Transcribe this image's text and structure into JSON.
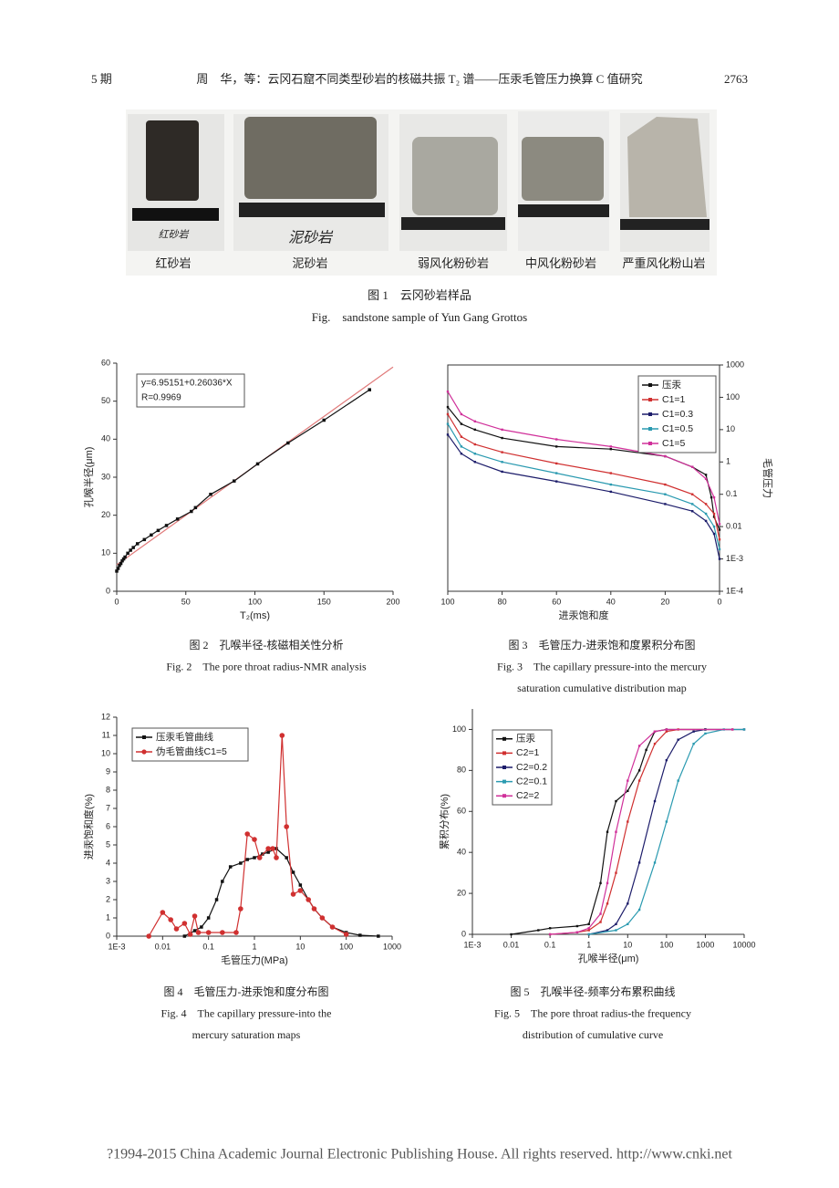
{
  "header": {
    "issue": "5 期",
    "title": "周　华，等：云冈石窟不同类型砂岩的核磁共振 T₂ 谱——压汞毛管压力换算 C 值研究",
    "page": "2763"
  },
  "figure1": {
    "sample_names": [
      "红砂岩",
      "泥砂岩",
      "弱风化粉砂岩",
      "中风化粉砂岩",
      "严重风化粉山岩"
    ],
    "photo_labels": [
      "红砂岩",
      "泥砂岩"
    ],
    "caption": [
      "图 1　云冈砂岩样品",
      "Fig.　sandstone sample of Yun Gang Grottos"
    ]
  },
  "chart_data": [
    {
      "type": "line",
      "xlabel": "T₂(ms)",
      "ylabel": "孔喉半径(μm)",
      "xlim": [
        0,
        200
      ],
      "xticks": [
        0,
        50,
        100,
        150,
        200
      ],
      "ylim": [
        0,
        60
      ],
      "yticks": [
        0,
        10,
        20,
        30,
        40,
        50,
        60
      ],
      "annotations": [
        "y=6.95151+0.26036*X",
        "R=0.9969"
      ],
      "series": [
        {
          "color": "#e07a7a",
          "marker": "none",
          "x": [
            0,
            200
          ],
          "values": [
            6.95,
            59
          ]
        },
        {
          "color": "#111111",
          "marker": "square",
          "x": [
            0,
            1,
            2,
            3,
            4,
            5,
            6,
            8,
            10,
            12,
            15,
            20,
            25,
            30,
            36,
            44,
            54,
            57,
            68,
            85,
            102,
            124,
            150,
            183
          ],
          "values": [
            5.3,
            6,
            6.8,
            7.3,
            8,
            8.5,
            9,
            10,
            10.8,
            11.5,
            12.5,
            13.6,
            14.8,
            16,
            17.3,
            19,
            21,
            22,
            25.5,
            29,
            33.5,
            39,
            45,
            53
          ]
        }
      ],
      "caption": [
        "图 2　孔喉半径-核磁相关性分析",
        "Fig. 2　The pore throat radius-NMR analysis"
      ]
    },
    {
      "type": "line",
      "xlabel": "进汞饱和度",
      "ylabel": "毛管压力",
      "yaxis": "right",
      "yscale": "log",
      "frame": true,
      "legend": "upper right",
      "xlim": [
        100,
        0
      ],
      "xticks": [
        100,
        80,
        60,
        40,
        20,
        0
      ],
      "ylim": [
        0.0001,
        1000
      ],
      "yticks": [
        {
          "value": 0.0001,
          "label": "1E-4"
        },
        {
          "value": 0.001,
          "label": "1E-3"
        },
        0.01,
        0.1,
        1,
        10,
        100,
        1000
      ],
      "series": [
        {
          "name": "压汞",
          "color": "#111111",
          "marker": "square",
          "x": [
            100,
            95,
            90,
            80,
            60,
            40,
            20,
            10,
            5,
            3,
            2,
            0
          ],
          "values": [
            50,
            15,
            10,
            5.5,
            3,
            2.5,
            1.5,
            0.7,
            0.4,
            0.08,
            0.02,
            0.008
          ]
        },
        {
          "name": "C1=1",
          "color": "#d03030",
          "marker": "square",
          "x": [
            100,
            95,
            90,
            80,
            60,
            40,
            20,
            10,
            5,
            2,
            0
          ],
          "values": [
            30,
            6,
            3.5,
            2,
            0.9,
            0.45,
            0.2,
            0.1,
            0.05,
            0.025,
            0.004
          ]
        },
        {
          "name": "C1=0.3",
          "color": "#1c1c6a",
          "marker": "square",
          "x": [
            100,
            95,
            90,
            80,
            60,
            40,
            20,
            10,
            5,
            2,
            0
          ],
          "values": [
            7,
            1.8,
            1,
            0.5,
            0.25,
            0.12,
            0.05,
            0.03,
            0.015,
            0.006,
            0.001
          ]
        },
        {
          "name": "C1=0.5",
          "color": "#2a9ab0",
          "marker": "square",
          "x": [
            100,
            95,
            90,
            80,
            60,
            40,
            20,
            10,
            5,
            2,
            0
          ],
          "values": [
            15,
            3,
            1.8,
            1,
            0.45,
            0.2,
            0.1,
            0.05,
            0.025,
            0.01,
            0.002
          ]
        },
        {
          "name": "C1=5",
          "color": "#d0309a",
          "marker": "square",
          "x": [
            100,
            95,
            90,
            80,
            60,
            40,
            20,
            10,
            5,
            2,
            0
          ],
          "values": [
            150,
            30,
            18,
            10,
            5,
            3,
            1.5,
            0.7,
            0.3,
            0.08,
            0.012
          ]
        }
      ],
      "caption": [
        "图 3　毛管压力-进汞饱和度累积分布图",
        "Fig. 3　The capillary pressure-into the mercury",
        "saturation cumulative distribution map"
      ]
    },
    {
      "type": "line",
      "xlabel": "毛管压力(MPa)",
      "ylabel": "进汞饱和度(%)",
      "xscale": "log",
      "legend": "upper left",
      "xlim": [
        0.001,
        1000
      ],
      "xticks": [
        {
          "value": 0.001,
          "label": "1E-3"
        },
        0.01,
        0.1,
        1,
        10,
        100,
        1000
      ],
      "ylim": [
        0,
        12
      ],
      "yticks": [
        0,
        1,
        2,
        3,
        4,
        5,
        6,
        7,
        8,
        9,
        10,
        11,
        12
      ],
      "series": [
        {
          "name": "压汞毛管曲线",
          "color": "#111111",
          "marker": "square",
          "x": [
            0.03,
            0.05,
            0.07,
            0.1,
            0.15,
            0.2,
            0.3,
            0.5,
            0.7,
            1,
            1.5,
            2,
            3,
            5,
            7,
            10,
            15,
            20,
            30,
            50,
            100,
            200,
            500
          ],
          "values": [
            0,
            0.3,
            0.5,
            1,
            2,
            3,
            3.8,
            4,
            4.2,
            4.3,
            4.5,
            4.6,
            4.8,
            4.3,
            3.5,
            2.8,
            2,
            1.5,
            1,
            0.5,
            0.2,
            0.05,
            0
          ]
        },
        {
          "name": "伪毛管曲线C1=5",
          "color": "#d03030",
          "marker": "circle",
          "x": [
            0.005,
            0.01,
            0.015,
            0.02,
            0.03,
            0.04,
            0.05,
            0.06,
            0.1,
            0.2,
            0.4,
            0.5,
            0.7,
            1,
            1.3,
            2,
            2.5,
            3,
            4,
            5,
            7,
            10,
            15,
            20,
            30,
            50,
            100
          ],
          "values": [
            0,
            1.3,
            0.9,
            0.4,
            0.7,
            0.1,
            1.1,
            0.2,
            0.2,
            0.2,
            0.2,
            1.5,
            5.6,
            5.3,
            4.3,
            4.8,
            4.8,
            4.3,
            11,
            6,
            2.3,
            2.5,
            2,
            1.5,
            1,
            0.5,
            0.1
          ]
        }
      ],
      "caption": [
        "图 4　毛管压力-进汞饱和度分布图",
        "Fig. 4　The capillary pressure-into the",
        "mercury saturation maps"
      ]
    },
    {
      "type": "line",
      "xlabel": "孔喉半径(μm)",
      "ylabel": "累积分布(%)",
      "xscale": "log",
      "legend": "upper left",
      "xlim": [
        0.001,
        10000
      ],
      "xticks": [
        {
          "value": 0.001,
          "label": "1E-3"
        },
        0.01,
        0.1,
        1,
        10,
        100,
        1000,
        10000
      ],
      "ylim": [
        0,
        110
      ],
      "yticks": [
        0,
        20,
        40,
        60,
        80,
        100
      ],
      "series": [
        {
          "name": "压汞",
          "color": "#111111",
          "marker": "square",
          "x": [
            0.01,
            0.05,
            0.1,
            0.5,
            1,
            2,
            3,
            5,
            10,
            20,
            30,
            50,
            100,
            1000
          ],
          "values": [
            0,
            2,
            3,
            4,
            5,
            25,
            50,
            65,
            70,
            80,
            90,
            99,
            100,
            100
          ]
        },
        {
          "name": "C2=1",
          "color": "#d03030",
          "marker": "square",
          "x": [
            0.1,
            0.5,
            1,
            2,
            3,
            5,
            10,
            20,
            50,
            100,
            200,
            5000
          ],
          "values": [
            0,
            1,
            2,
            6,
            15,
            30,
            55,
            75,
            93,
            99,
            100,
            100
          ]
        },
        {
          "name": "C2=0.2",
          "color": "#1c1c6a",
          "marker": "square",
          "x": [
            1,
            3,
            5,
            10,
            20,
            50,
            100,
            200,
            500,
            1000,
            10000
          ],
          "values": [
            0,
            2,
            5,
            15,
            35,
            65,
            85,
            95,
            99,
            100,
            100
          ]
        },
        {
          "name": "C2=0.1",
          "color": "#2a9ab0",
          "marker": "square",
          "x": [
            1,
            5,
            10,
            20,
            50,
            100,
            200,
            500,
            1000,
            3000,
            10000
          ],
          "values": [
            0,
            2,
            5,
            12,
            35,
            55,
            75,
            93,
            98,
            100,
            100
          ]
        },
        {
          "name": "C2=2",
          "color": "#d0309a",
          "marker": "square",
          "x": [
            0.1,
            0.5,
            1,
            2,
            3,
            5,
            10,
            20,
            50,
            100,
            5000
          ],
          "values": [
            0,
            1,
            3,
            10,
            25,
            50,
            75,
            92,
            99,
            100,
            100
          ]
        }
      ],
      "caption": [
        "图 5　孔喉半径-频率分布累积曲线",
        "Fig. 5　The pore throat radius-the frequency",
        "distribution of cumulative curve"
      ]
    }
  ],
  "footer": "?1994-2015 China Academic Journal Electronic Publishing House. All rights reserved.    http://www.cnki.net"
}
